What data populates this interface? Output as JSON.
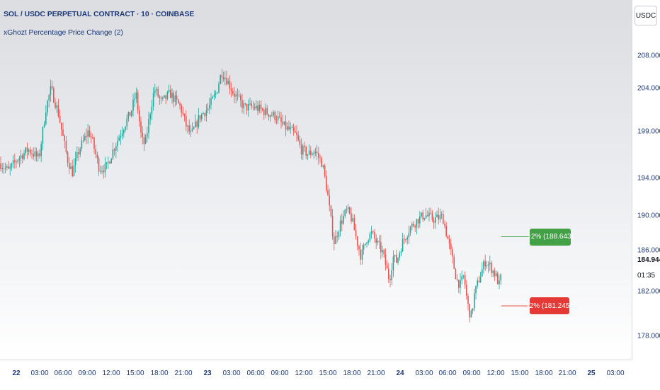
{
  "header": {
    "title": "SOL / USDC PERPETUAL CONTRACT · 10 · COINBASE",
    "indicator": "xGhozt Percentage Price Change (2)"
  },
  "currency_button": "USDC",
  "price_axis": {
    "ticks": [
      "208.000",
      "204.000",
      "199.000",
      "194.000",
      "190.000",
      "186.000",
      "182.000",
      "178.000"
    ],
    "last_price": "184.944",
    "countdown": "01:35"
  },
  "time_axis": {
    "labels": [
      "22",
      "03:00",
      "06:00",
      "09:00",
      "12:00",
      "15:00",
      "18:00",
      "21:00",
      "23",
      "03:00",
      "06:00",
      "09:00",
      "12:00",
      "15:00",
      "18:00",
      "21:00",
      "24",
      "03:00",
      "06:00",
      "09:00",
      "12:00",
      "15:00",
      "18:00",
      "21:00",
      "25",
      "03:00"
    ]
  },
  "badges": {
    "upper": "+2% (188.643)",
    "lower": "-2% (181.245)"
  },
  "colors": {
    "up": "#26a69a",
    "down": "#ef5350",
    "upper_badge": "#43a047",
    "lower_badge": "#e53935",
    "text": "#1e3a7a"
  },
  "chart_data": {
    "type": "candlestick",
    "title": "SOL / USDC PERPETUAL CONTRACT · 10 · COINBASE",
    "interval": "10",
    "ylim": [
      175,
      211
    ],
    "x_ticks": [
      "22",
      "03:00",
      "06:00",
      "09:00",
      "12:00",
      "15:00",
      "18:00",
      "21:00",
      "23",
      "03:00",
      "06:00",
      "09:00",
      "12:00",
      "15:00",
      "18:00",
      "21:00",
      "24",
      "03:00",
      "06:00",
      "09:00",
      "12:00",
      "15:00",
      "18:00",
      "21:00",
      "25",
      "03:00"
    ],
    "y_ticks": [
      208,
      204,
      199,
      194,
      190,
      186,
      182,
      178
    ],
    "close_path": [
      [
        0,
        196.5
      ],
      [
        12,
        195.7
      ],
      [
        25,
        197.0
      ],
      [
        40,
        198.0
      ],
      [
        55,
        197.0
      ],
      [
        65,
        202.5
      ],
      [
        72,
        204.5
      ],
      [
        82,
        202.0
      ],
      [
        95,
        197.0
      ],
      [
        102,
        195.5
      ],
      [
        112,
        198.0
      ],
      [
        125,
        200.0
      ],
      [
        130,
        199.0
      ],
      [
        140,
        196.0
      ],
      [
        150,
        196.0
      ],
      [
        160,
        198.0
      ],
      [
        175,
        200.5
      ],
      [
        185,
        202.0
      ],
      [
        192,
        204.0
      ],
      [
        200,
        199.0
      ],
      [
        205,
        198.5
      ],
      [
        212,
        202.0
      ],
      [
        218,
        204.5
      ],
      [
        228,
        203.0
      ],
      [
        240,
        204.0
      ],
      [
        255,
        202.5
      ],
      [
        263,
        200.5
      ],
      [
        270,
        199.5
      ],
      [
        282,
        201.5
      ],
      [
        295,
        202.5
      ],
      [
        305,
        204.0
      ],
      [
        313,
        206.3
      ],
      [
        320,
        205.5
      ],
      [
        330,
        204.0
      ],
      [
        345,
        202.5
      ],
      [
        360,
        202.5
      ],
      [
        375,
        202.0
      ],
      [
        390,
        201.5
      ],
      [
        400,
        200.5
      ],
      [
        410,
        200.0
      ],
      [
        418,
        199.5
      ],
      [
        425,
        198.0
      ],
      [
        435,
        197.5
      ],
      [
        445,
        197.8
      ],
      [
        455,
        196.5
      ],
      [
        462,
        193.5
      ],
      [
        468,
        190.0
      ],
      [
        472,
        188.0
      ],
      [
        480,
        190.0
      ],
      [
        490,
        191.5
      ],
      [
        497,
        190.5
      ],
      [
        503,
        188.5
      ],
      [
        510,
        186.5
      ],
      [
        518,
        188.5
      ],
      [
        525,
        189.0
      ],
      [
        532,
        188.0
      ],
      [
        540,
        187.0
      ],
      [
        545,
        185.5
      ],
      [
        550,
        184.0
      ],
      [
        555,
        186.5
      ],
      [
        560,
        186.0
      ],
      [
        568,
        188.0
      ],
      [
        578,
        189.5
      ],
      [
        590,
        190.5
      ],
      [
        600,
        191.0
      ],
      [
        612,
        190.5
      ],
      [
        625,
        190.8
      ],
      [
        632,
        188.5
      ],
      [
        638,
        186.5
      ],
      [
        645,
        184.0
      ],
      [
        650,
        183.5
      ],
      [
        655,
        184.5
      ],
      [
        660,
        181.5
      ],
      [
        665,
        180.0
      ],
      [
        670,
        182.5
      ],
      [
        678,
        184.5
      ],
      [
        685,
        186.0
      ],
      [
        692,
        185.5
      ],
      [
        700,
        184.5
      ],
      [
        705,
        183.5
      ],
      [
        709,
        184.944
      ]
    ],
    "upper_level": {
      "label": "+2%",
      "value": 188.643
    },
    "lower_level": {
      "label": "-2%",
      "value": 181.245
    },
    "last_price": 184.944
  }
}
